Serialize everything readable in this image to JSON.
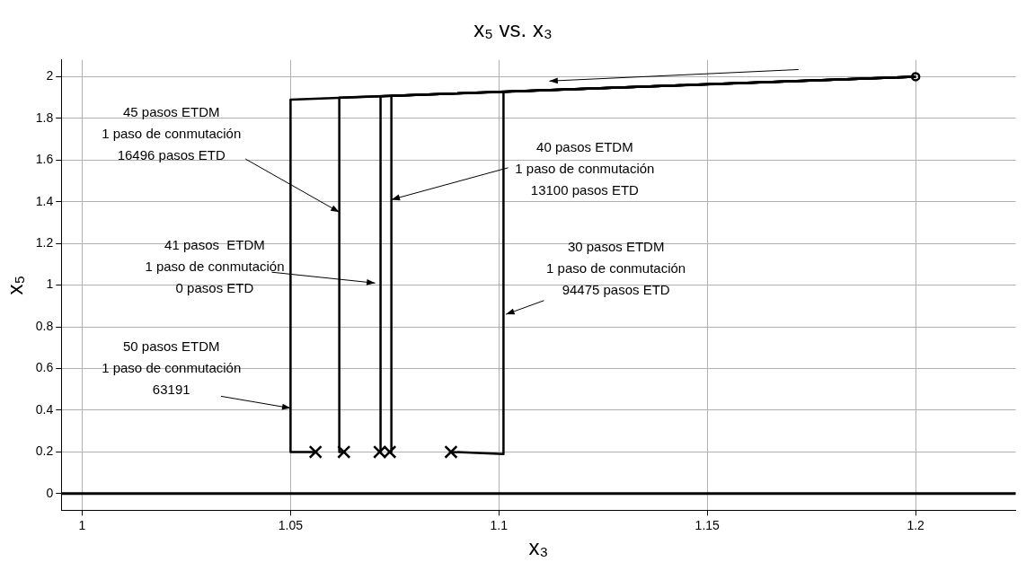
{
  "chart_data": {
    "type": "line",
    "title": "x₅ vs. x₃",
    "xlabel": "x₃",
    "ylabel": "x₅",
    "xlim": [
      0.995,
      1.224
    ],
    "xticks": [
      1,
      1.05,
      1.1,
      1.15,
      1.2
    ],
    "ylim": [
      -0.08,
      2.08
    ],
    "yticks": [
      0,
      0.2,
      0.4,
      0.6,
      0.8,
      1,
      1.2,
      1.4,
      1.6,
      1.8,
      2
    ],
    "grid": true,
    "legend": false,
    "line_style": "solid",
    "series": [
      {
        "color": "#000000",
        "marker": "none",
        "x": [
          1.2,
          1.05,
          1.05,
          1.056
        ],
        "values": [
          2,
          1.89,
          0.2,
          0.2
        ]
      },
      {
        "color": "#000000",
        "marker": "none",
        "x": [
          1.2,
          1.0617,
          1.0617,
          1.0628
        ],
        "values": [
          2,
          1.899,
          0.2,
          0.2
        ]
      },
      {
        "color": "#000000",
        "marker": "none",
        "x": [
          1.2,
          1.0716,
          1.0716,
          1.0714
        ],
        "values": [
          2,
          1.906,
          0.2,
          0.2
        ]
      },
      {
        "color": "#000000",
        "marker": "none",
        "x": [
          1.2,
          1.0742,
          1.0742,
          1.0738
        ],
        "values": [
          2,
          1.908,
          0.2,
          0.2
        ]
      },
      {
        "color": "#000000",
        "marker": "none",
        "x": [
          1.2,
          1.1011,
          1.1011,
          1.0885
        ],
        "values": [
          2,
          1.927,
          0.19,
          0.2
        ]
      },
      {
        "type": "scatter",
        "color": "#000000",
        "marker": "cross",
        "x": [
          1.056,
          1.0628,
          1.0714,
          1.0738,
          1.0885
        ],
        "values": [
          0.2,
          0.2,
          0.2,
          0.2,
          0.2
        ]
      },
      {
        "type": "scatter",
        "color": "#000000",
        "marker": "circle",
        "x": [
          1.2
        ],
        "values": [
          2
        ]
      }
    ],
    "ref_lines": [
      {
        "axis": "y",
        "value": 0,
        "color": "#000000"
      }
    ],
    "annotations": [
      {
        "text": "50 pasos ETDM\n1 paso de conmutación\n63191",
        "x": 1.05,
        "y": 0.41
      },
      {
        "text": "45 pasos ETDM\n1 paso de conmutación\n16496 pasos ETD",
        "x": 1.0617,
        "y": 1.35
      },
      {
        "text": "41 pasos  ETDM\n1 paso de conmutación\n0 pasos ETD",
        "x": 1.0703,
        "y": 1.01
      },
      {
        "text": "40 pasos ETDM\n1 paso de conmutación\n13100 pasos ETD",
        "x": 1.0742,
        "y": 1.41
      },
      {
        "text": "30 pasos ETDM\n1 paso de conmutación\n94475 pasos ETD",
        "x": 1.1017,
        "y": 0.86
      }
    ]
  }
}
